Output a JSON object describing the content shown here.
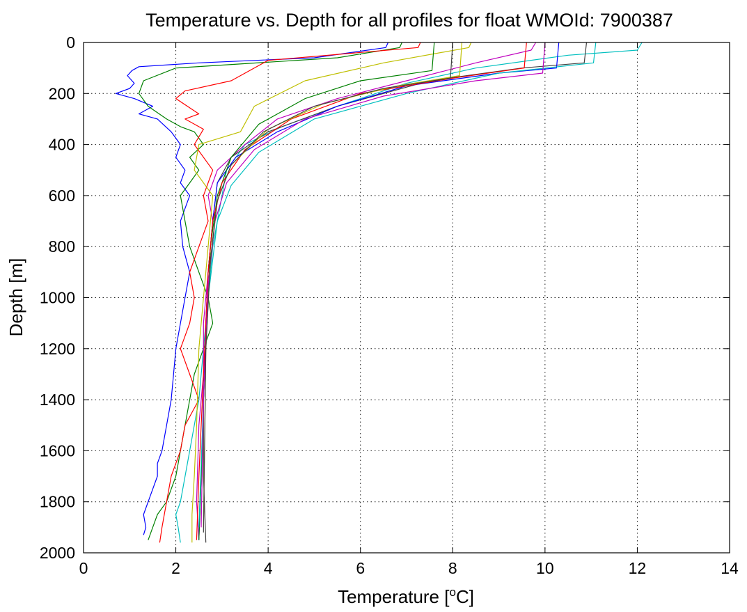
{
  "chart_data": {
    "type": "line",
    "title": "Temperature vs. Depth for all profiles for float WMOId: 7900387",
    "xlabel": "Temperature [",
    "xlabel_sup": "o",
    "xlabel_end": "C]",
    "ylabel": "Depth [m]",
    "xlim": [
      0,
      14
    ],
    "ylim": [
      0,
      2000
    ],
    "y_reversed": true,
    "grid": true,
    "xticks": [
      "0",
      "2",
      "4",
      "6",
      "8",
      "10",
      "12",
      "14"
    ],
    "yticks": [
      "0",
      "200",
      "400",
      "600",
      "800",
      "1000",
      "1200",
      "1400",
      "1600",
      "1800",
      "2000"
    ],
    "series": [
      {
        "color": "#0000ff",
        "x": [
          6.6,
          6.55,
          5.0,
          2.5,
          1.2,
          1.05,
          0.95,
          1.1,
          1.0,
          0.7,
          1.1,
          1.5,
          1.2,
          1.6,
          1.9,
          2.1,
          2.0,
          2.2,
          2.1,
          2.3,
          2.1,
          2.15,
          2.3,
          2.2,
          2.1,
          2.0,
          1.95,
          1.9,
          1.8,
          1.7,
          1.6,
          1.6,
          1.5,
          1.4,
          1.3,
          1.35,
          1.3
        ],
        "y": [
          0,
          20,
          60,
          80,
          95,
          110,
          130,
          160,
          180,
          200,
          220,
          250,
          280,
          300,
          350,
          400,
          450,
          500,
          550,
          600,
          700,
          800,
          900,
          1000,
          1100,
          1200,
          1300,
          1400,
          1500,
          1600,
          1650,
          1700,
          1750,
          1800,
          1850,
          1900,
          1930
        ]
      },
      {
        "color": "#008000",
        "x": [
          6.9,
          6.85,
          5.5,
          2.0,
          1.3,
          1.2,
          1.4,
          1.8,
          2.1,
          2.4,
          2.6,
          2.3,
          2.5,
          2.3,
          2.1,
          2.2,
          2.3,
          2.5,
          2.7,
          2.8,
          2.6,
          2.4,
          2.3,
          2.2,
          2.1,
          2.0,
          1.9,
          1.8,
          1.6,
          1.5,
          1.4
        ],
        "y": [
          0,
          20,
          60,
          100,
          150,
          200,
          250,
          300,
          330,
          350,
          400,
          450,
          500,
          550,
          600,
          700,
          800,
          900,
          1000,
          1100,
          1200,
          1300,
          1400,
          1500,
          1600,
          1700,
          1750,
          1800,
          1850,
          1900,
          1950
        ]
      },
      {
        "color": "#ff0000",
        "x": [
          7.3,
          7.25,
          4.0,
          3.2,
          2.2,
          2.0,
          2.5,
          2.2,
          2.6,
          2.4,
          2.8,
          2.6,
          2.7,
          2.5,
          2.3,
          2.4,
          2.3,
          2.1,
          2.3,
          2.5,
          2.2,
          2.1,
          1.9,
          1.8,
          1.7,
          1.65
        ],
        "y": [
          0,
          20,
          70,
          150,
          190,
          220,
          280,
          300,
          340,
          400,
          500,
          600,
          700,
          800,
          900,
          1000,
          1100,
          1200,
          1300,
          1400,
          1500,
          1600,
          1700,
          1800,
          1900,
          1960
        ]
      },
      {
        "color": "#00bfbf",
        "x": [
          12.1,
          12.0,
          10.5,
          8.5,
          7.0,
          5.5,
          4.3,
          3.5,
          3.1,
          3.0,
          2.9,
          2.8,
          2.7,
          2.6,
          2.5,
          2.3,
          2.1,
          2.0,
          2.05,
          2.1
        ],
        "y": [
          0,
          30,
          50,
          100,
          160,
          250,
          330,
          400,
          500,
          600,
          700,
          800,
          1000,
          1200,
          1400,
          1600,
          1800,
          1850,
          1900,
          1960
        ]
      },
      {
        "color": "#bf00bf",
        "x": [
          9.8,
          9.7,
          8.5,
          7.0,
          5.5,
          4.2,
          3.5,
          2.9,
          2.7,
          2.8,
          2.7,
          2.6,
          2.6,
          2.5,
          2.45,
          2.5
        ],
        "y": [
          0,
          30,
          80,
          150,
          220,
          300,
          400,
          500,
          600,
          700,
          900,
          1100,
          1300,
          1500,
          1800,
          1950
        ]
      },
      {
        "color": "#bfbf00",
        "x": [
          8.4,
          8.35,
          6.5,
          4.8,
          3.7,
          3.4,
          2.5,
          2.4,
          2.6,
          2.8,
          2.7,
          2.6,
          2.5,
          2.45,
          2.4,
          2.35,
          2.35
        ],
        "y": [
          0,
          20,
          80,
          150,
          250,
          350,
          400,
          500,
          550,
          600,
          800,
          1000,
          1200,
          1500,
          1700,
          1850,
          1960
        ]
      },
      {
        "color": "#404040",
        "x": [
          10.9,
          10.85,
          9.5,
          7.5,
          5.5,
          4.0,
          3.2,
          2.9,
          2.8,
          2.7,
          2.65,
          2.6,
          2.6,
          2.65
        ],
        "y": [
          0,
          80,
          100,
          150,
          250,
          350,
          450,
          550,
          700,
          900,
          1100,
          1400,
          1700,
          1960
        ]
      },
      {
        "color": "#0000ff",
        "x": [
          10.3,
          10.25,
          9.0,
          7.0,
          5.5,
          4.2,
          3.3,
          2.9,
          2.8,
          2.7,
          2.65,
          2.6,
          2.55,
          2.5
        ],
        "y": [
          0,
          100,
          120,
          170,
          250,
          350,
          450,
          550,
          700,
          900,
          1100,
          1400,
          1700,
          1950
        ]
      },
      {
        "color": "#008000",
        "x": [
          7.6,
          7.55,
          6.0,
          4.8,
          3.8,
          3.2,
          2.9,
          2.75,
          2.7,
          2.6,
          2.55,
          2.5
        ],
        "y": [
          0,
          110,
          150,
          220,
          320,
          450,
          600,
          800,
          1000,
          1400,
          1700,
          1950
        ]
      },
      {
        "color": "#ff0000",
        "x": [
          9.6,
          9.55,
          8.0,
          6.0,
          4.5,
          3.5,
          3.0,
          2.8,
          2.7,
          2.6,
          2.5,
          2.45
        ],
        "y": [
          0,
          100,
          140,
          200,
          300,
          420,
          550,
          700,
          900,
          1300,
          1700,
          1950
        ]
      },
      {
        "color": "#00bfbf",
        "x": [
          11.1,
          11.05,
          9.0,
          7.0,
          5.0,
          3.8,
          3.2,
          2.9,
          2.7,
          2.6,
          2.5
        ],
        "y": [
          0,
          80,
          120,
          200,
          300,
          430,
          560,
          700,
          1000,
          1400,
          1900
        ]
      },
      {
        "color": "#bf00bf",
        "x": [
          10.0,
          9.95,
          8.5,
          6.5,
          4.8,
          3.7,
          3.1,
          2.85,
          2.7,
          2.6,
          2.55
        ],
        "y": [
          0,
          120,
          150,
          210,
          300,
          420,
          550,
          700,
          950,
          1400,
          1900
        ]
      },
      {
        "color": "#bfbf00",
        "x": [
          8.2,
          8.15,
          6.8,
          5.2,
          4.0,
          3.2,
          2.9,
          2.75,
          2.65,
          2.6
        ],
        "y": [
          0,
          130,
          170,
          240,
          340,
          480,
          620,
          850,
          1200,
          1900
        ]
      },
      {
        "color": "#404040",
        "x": [
          8.0,
          7.95,
          6.5,
          5.0,
          3.9,
          3.2,
          2.9,
          2.75,
          2.65,
          2.6
        ],
        "y": [
          0,
          140,
          180,
          250,
          350,
          480,
          620,
          850,
          1200,
          1920
        ]
      }
    ]
  }
}
